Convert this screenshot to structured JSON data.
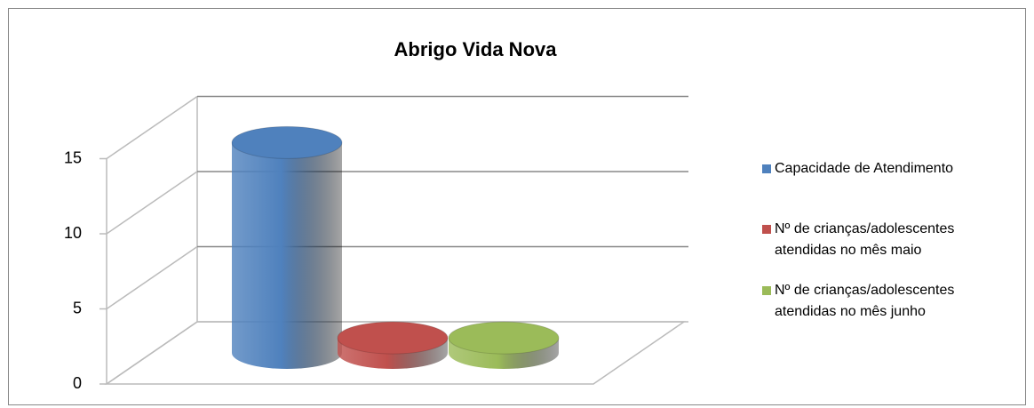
{
  "chart_data": {
    "type": "bar3d",
    "title": "Abrigo Vida Nova",
    "categories": [
      null
    ],
    "series": [
      {
        "name": "Capacidade de Atendimento",
        "color": "#4f81bd",
        "values": [
          14
        ]
      },
      {
        "name": "Nº de crianças/adolescentes atendidas no mês maio",
        "color": "#c0504d",
        "values": [
          1
        ]
      },
      {
        "name": "Nº de crianças/adolescentes atendidas no mês junho",
        "color": "#9bbb59",
        "values": [
          1
        ]
      }
    ],
    "ylim": [
      0,
      15
    ],
    "yticks": [
      0,
      5,
      10,
      15
    ],
    "grid": true,
    "legend": "right"
  }
}
